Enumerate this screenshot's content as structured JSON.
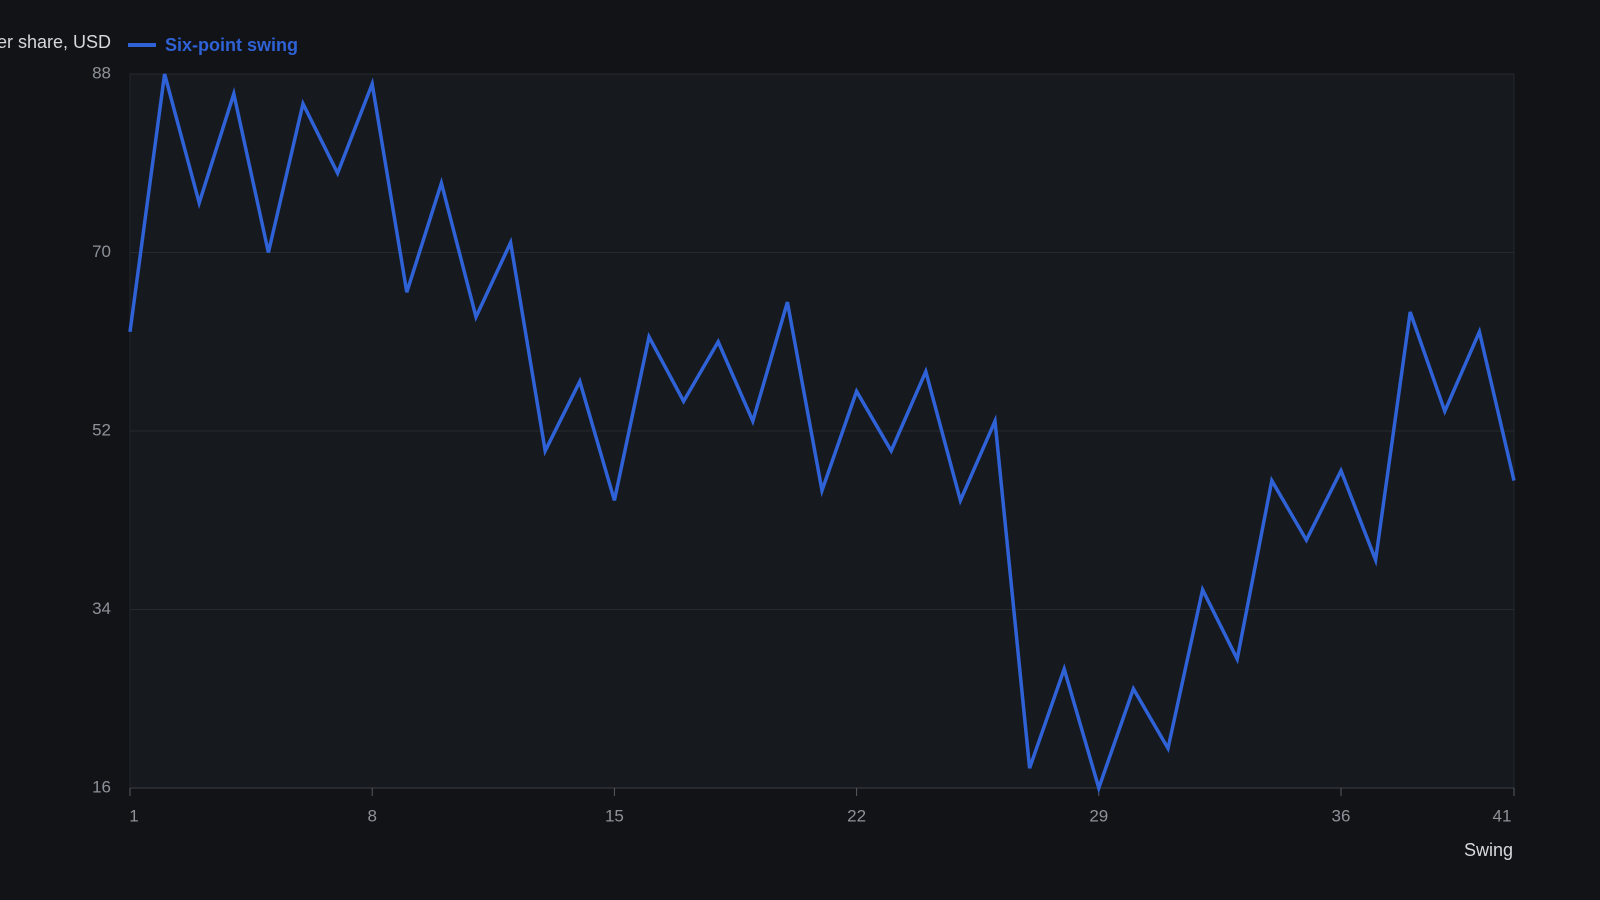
{
  "chart_data": {
    "type": "line",
    "y_label": "Price per share, USD",
    "x_label": "Swing",
    "x": [
      1,
      2,
      3,
      4,
      5,
      6,
      7,
      8,
      9,
      10,
      11,
      12,
      13,
      14,
      15,
      16,
      17,
      18,
      19,
      20,
      21,
      22,
      23,
      24,
      25,
      26,
      27,
      28,
      29,
      30,
      31,
      32,
      33,
      34,
      35,
      36,
      37,
      38,
      39,
      40,
      41
    ],
    "series": [
      {
        "name": "Six-point swing",
        "color": "#2f62d6",
        "values": [
          62,
          88,
          75,
          86,
          70,
          85,
          78,
          87,
          66,
          77,
          63.5,
          71,
          50,
          57,
          45,
          61.5,
          55,
          61,
          53,
          65,
          46,
          56,
          50,
          58,
          45,
          53,
          18,
          28,
          16,
          26,
          20,
          36,
          29,
          47,
          41,
          48,
          39,
          64,
          54,
          62,
          47
        ]
      }
    ],
    "xlim": [
      1,
      41
    ],
    "xticks": [
      1,
      8,
      15,
      22,
      29,
      36,
      41
    ],
    "ylim": [
      16,
      88
    ],
    "yticks": [
      16,
      34,
      52,
      70,
      88
    ],
    "grid": true
  }
}
